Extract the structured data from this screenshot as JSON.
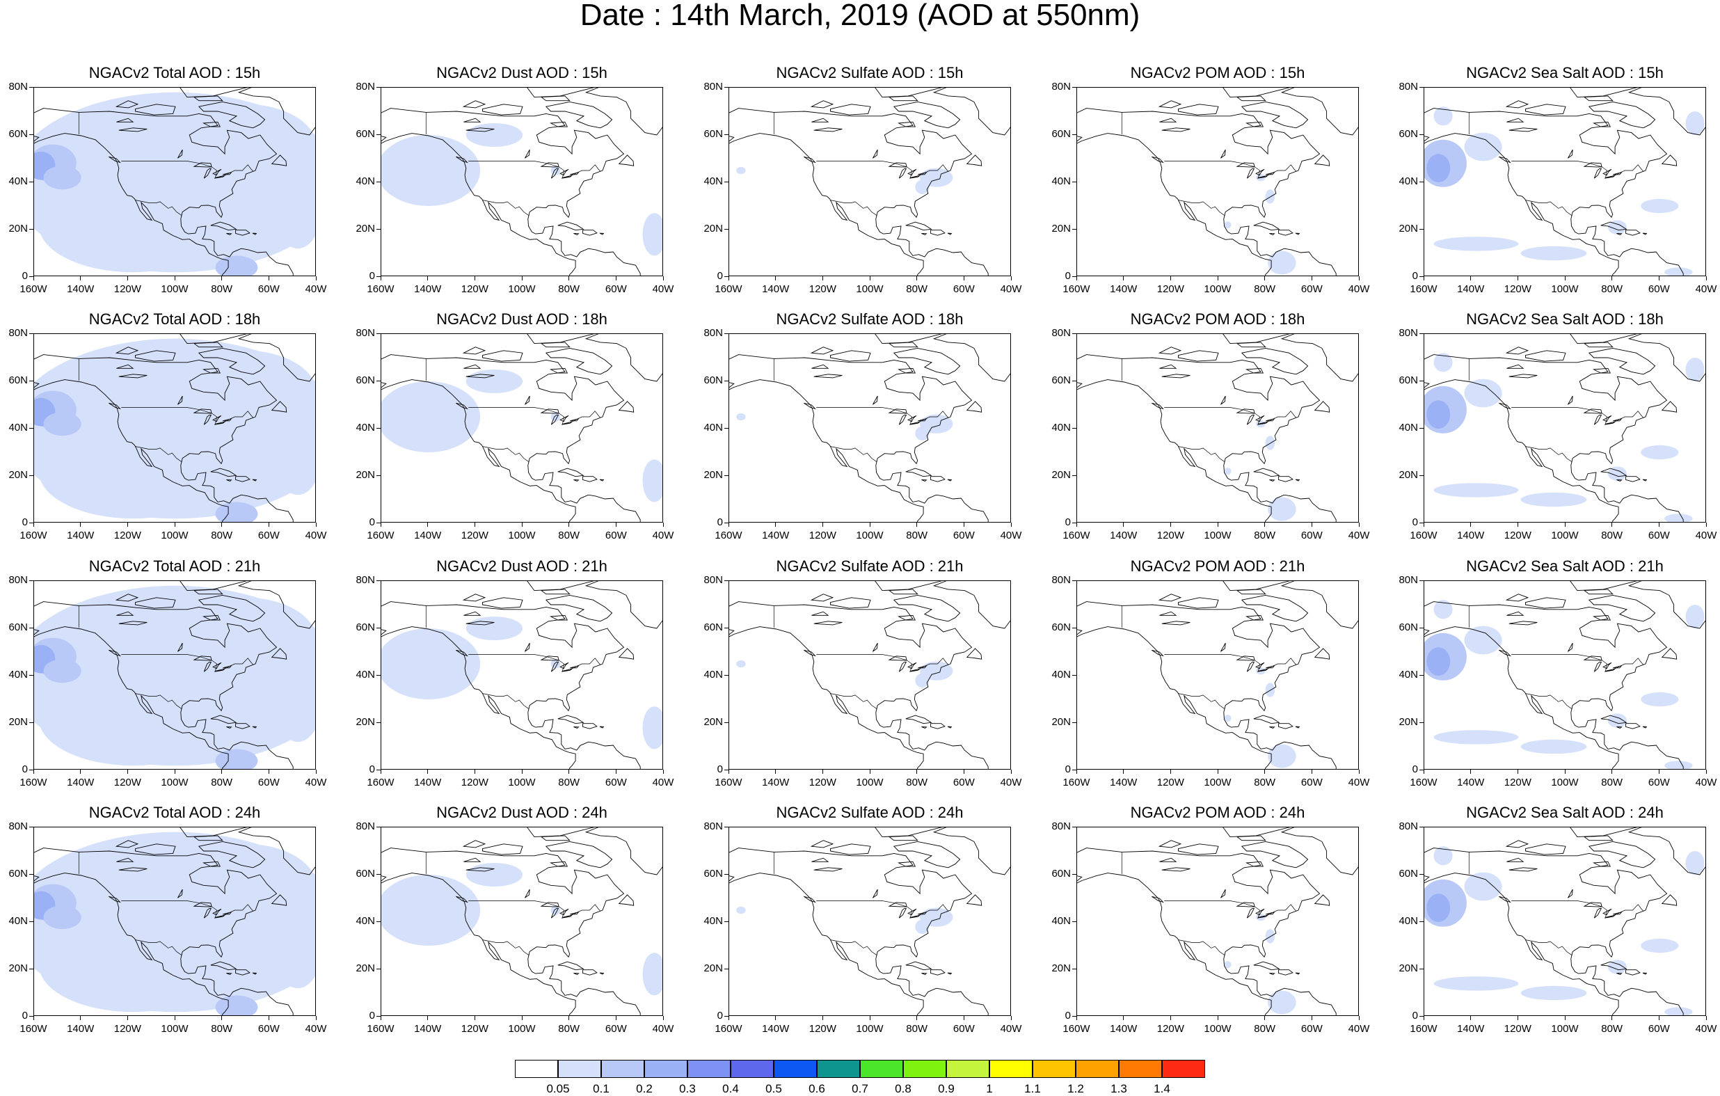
{
  "title": "Date : 14th March, 2019 (AOD at 550nm)",
  "map": {
    "extent": {
      "lon_min": -160,
      "lon_max": -40,
      "lat_min": 0,
      "lat_max": 80
    },
    "lat_ticks": [
      "80N",
      "60N",
      "40N",
      "20N",
      "0"
    ],
    "lon_ticks": [
      "160W",
      "140W",
      "120W",
      "100W",
      "80W",
      "60W",
      "40W"
    ]
  },
  "panels": [
    {
      "title": "NGACv2 Total AOD : 15h",
      "species": "total"
    },
    {
      "title": "NGACv2 Dust AOD : 15h",
      "species": "dust"
    },
    {
      "title": "NGACv2 Sulfate AOD : 15h",
      "species": "sulfate"
    },
    {
      "title": "NGACv2 POM AOD : 15h",
      "species": "pom"
    },
    {
      "title": "NGACv2 Sea Salt AOD : 15h",
      "species": "seasalt"
    },
    {
      "title": "NGACv2 Total AOD : 18h",
      "species": "total"
    },
    {
      "title": "NGACv2 Dust AOD : 18h",
      "species": "dust"
    },
    {
      "title": "NGACv2 Sulfate AOD : 18h",
      "species": "sulfate"
    },
    {
      "title": "NGACv2 POM AOD : 18h",
      "species": "pom"
    },
    {
      "title": "NGACv2 Sea Salt AOD : 18h",
      "species": "seasalt"
    },
    {
      "title": "NGACv2 Total AOD : 21h",
      "species": "total"
    },
    {
      "title": "NGACv2 Dust AOD : 21h",
      "species": "dust"
    },
    {
      "title": "NGACv2 Sulfate AOD : 21h",
      "species": "sulfate"
    },
    {
      "title": "NGACv2 POM AOD : 21h",
      "species": "pom"
    },
    {
      "title": "NGACv2 Sea Salt AOD : 21h",
      "species": "seasalt"
    },
    {
      "title": "NGACv2 Total AOD : 24h",
      "species": "total"
    },
    {
      "title": "NGACv2 Dust AOD : 24h",
      "species": "dust"
    },
    {
      "title": "NGACv2 Sulfate AOD : 24h",
      "species": "sulfate"
    },
    {
      "title": "NGACv2 POM AOD : 24h",
      "species": "pom"
    },
    {
      "title": "NGACv2 Sea Salt  AOD : 24h",
      "species": "seasalt"
    }
  ],
  "colorbar": {
    "labels": [
      "0.05",
      "0.1",
      "0.2",
      "0.3",
      "0.4",
      "0.5",
      "0.6",
      "0.7",
      "0.8",
      "0.9",
      "1",
      "1.1",
      "1.2",
      "1.3",
      "1.4"
    ],
    "colors": [
      "#ffffff",
      "#d5e0fb",
      "#b8c9f8",
      "#9bb1f6",
      "#7e92f3",
      "#5e68ec",
      "#0d58f2",
      "#0e958f",
      "#4be62a",
      "#7ff20f",
      "#c4f53c",
      "#ffff00",
      "#ffc400",
      "#ffa200",
      "#ff7a00",
      "#ff2a12"
    ]
  }
}
